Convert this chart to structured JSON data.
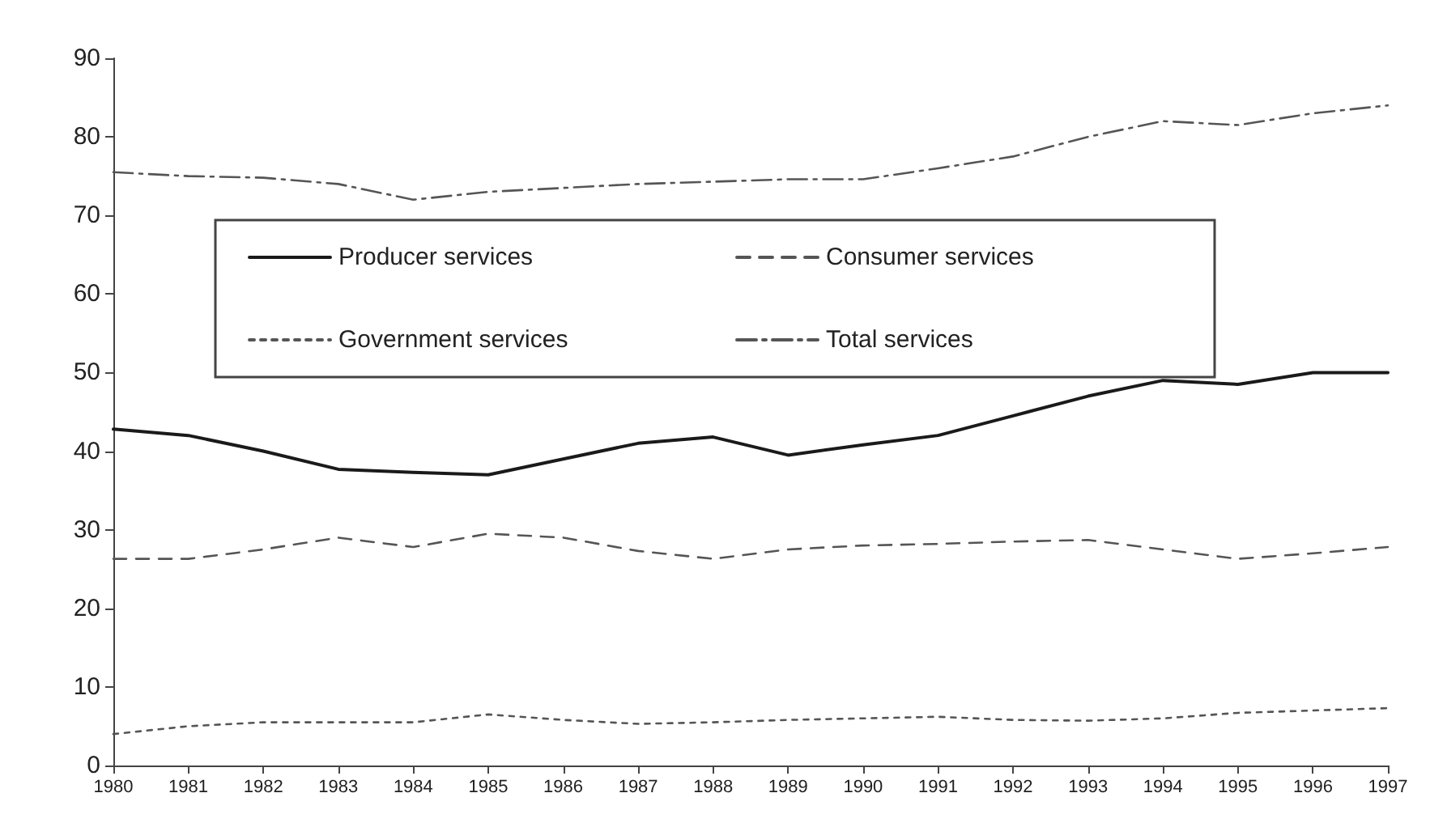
{
  "chart_data": {
    "type": "line",
    "categories": [
      "1980",
      "1981",
      "1982",
      "1983",
      "1984",
      "1985",
      "1986",
      "1987",
      "1988",
      "1989",
      "1990",
      "1991",
      "1992",
      "1993",
      "1994",
      "1995",
      "1996",
      "1997"
    ],
    "series": [
      {
        "name": "Producer services",
        "color": "#1a1a1a",
        "line_style": "solid",
        "values": [
          42.8,
          42,
          40,
          37.7,
          37.3,
          37,
          39,
          41,
          41.8,
          39.5,
          40.8,
          42,
          44.5,
          47,
          49,
          48.5,
          50,
          50
        ]
      },
      {
        "name": "Consumer services",
        "color": "#555555",
        "line_style": "dashed",
        "values": [
          26.3,
          26.3,
          27.5,
          29,
          27.8,
          29.5,
          29,
          27.3,
          26.3,
          27.5,
          28,
          28.2,
          28.5,
          28.7,
          27.5,
          26.3,
          27,
          27.8
        ]
      },
      {
        "name": "Government services",
        "color": "#555555",
        "line_style": "dotted",
        "values": [
          4,
          5,
          5.5,
          5.5,
          5.5,
          6.5,
          5.8,
          5.3,
          5.5,
          5.8,
          6,
          6.2,
          5.8,
          5.7,
          6,
          6.7,
          7,
          7.3
        ]
      },
      {
        "name": "Total services",
        "color": "#555555",
        "line_style": "dashdot",
        "values": [
          75.5,
          75,
          74.8,
          74,
          72,
          73,
          73.5,
          74,
          74.3,
          74.6,
          74.6,
          76,
          77.5,
          80,
          82,
          81.5,
          83,
          84
        ]
      }
    ],
    "ylim": [
      0,
      90
    ],
    "yticks": [
      0,
      10,
      20,
      30,
      40,
      50,
      60,
      70,
      80,
      90
    ],
    "grid": false,
    "legend": "top",
    "marker": "none"
  }
}
